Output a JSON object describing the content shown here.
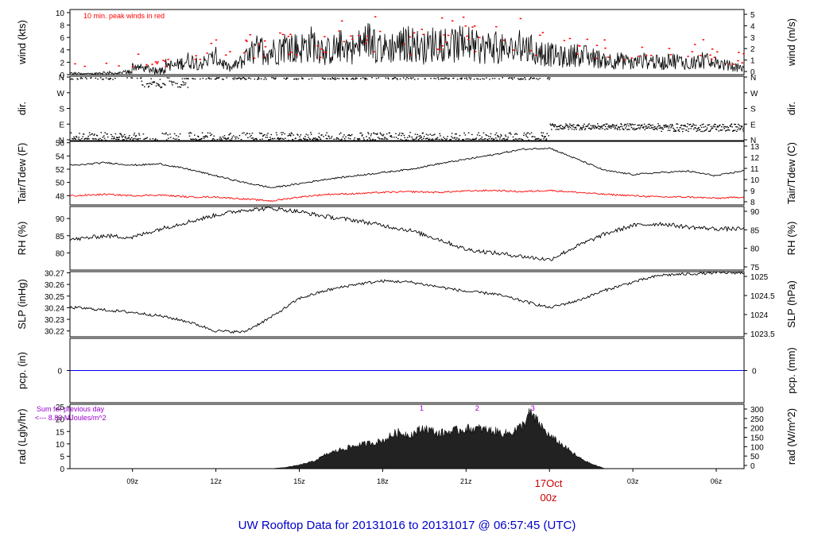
{
  "title": "UW Rooftop Data for 20131016  to  20131017 @ 06:57:45  (UTC)",
  "colors": {
    "axis": "#000000",
    "peak": "#ff0000",
    "precip": "#0000ff",
    "title": "#0000cc",
    "radiation_note": "#9900cc",
    "date_label": "#cc0000"
  },
  "time_axis": {
    "ticks": [
      "09z",
      "12z",
      "15z",
      "18z",
      "21z",
      "00z",
      "03z",
      "06z"
    ],
    "date_label": "17Oct",
    "date_sub": "00z"
  },
  "chart_data": [
    {
      "type": "line",
      "id": "wind",
      "ylabel": "wind (kts)",
      "ylabel_right": "wind (m/s)",
      "ylim": [
        0,
        10.5
      ],
      "yticks": [
        0,
        2,
        4,
        6,
        8,
        10
      ],
      "yticks_right": [
        "0",
        "1",
        "2",
        "3",
        "4",
        "5"
      ],
      "annotation": "10 min. peak winds in red",
      "series": [
        {
          "x_hours": [
            7.0,
            7.5,
            8.0,
            8.5,
            9.0,
            9.5,
            10.0,
            10.5,
            11.0,
            11.5,
            12.0,
            12.5,
            13.0,
            13.5,
            14.0,
            14.5,
            15.0,
            15.5,
            16.0,
            16.5,
            17.0,
            17.5,
            18.0,
            18.5,
            19.0,
            19.5,
            20.0,
            20.5,
            21.0,
            21.5,
            22.0,
            22.5,
            23.0,
            23.5,
            24.0,
            24.5,
            25.0,
            25.5,
            26.0,
            26.5,
            27.0,
            27.5,
            28.0,
            28.5,
            29.0,
            29.5,
            30.0,
            30.5,
            31.0
          ],
          "values": [
            0.5,
            0.3,
            0.8,
            0.5,
            1.5,
            1.0,
            2.0,
            1.5,
            2.5,
            2.0,
            3.0,
            1.0,
            2.5,
            4.5,
            4.0,
            5.0,
            4.5,
            5.5,
            4.0,
            5.0,
            4.5,
            6.0,
            4.5,
            5.0,
            5.5,
            4.5,
            6.0,
            5.0,
            5.5,
            4.5,
            5.0,
            4.0,
            5.0,
            4.0,
            3.5,
            3.0,
            3.5,
            3.0,
            2.5,
            2.5,
            2.0,
            2.5,
            2.0,
            2.5,
            2.0,
            2.5,
            2.0,
            1.5,
            1.0
          ]
        }
      ]
    },
    {
      "type": "scatter",
      "id": "direction",
      "ylabel": "dir.",
      "ylabel_right": "dir.",
      "yticks": [
        "N",
        "E",
        "S",
        "W",
        "N"
      ],
      "note": "wind direction, N at bottom and top"
    },
    {
      "type": "line",
      "id": "temperature",
      "ylabel": "Tair/Tdew (F)",
      "ylabel_right": "Tair/Tdew (C)",
      "ylim": [
        46.6,
        56.2
      ],
      "yticks": [
        48,
        50,
        52,
        54,
        56
      ],
      "yticks_right": [
        "8",
        "9",
        "10",
        "11",
        "12",
        "13"
      ],
      "series": [
        {
          "name": "Tair",
          "x_hours": [
            7,
            8,
            9,
            10,
            11,
            12,
            13,
            14,
            15,
            16,
            17,
            18,
            19,
            20,
            21,
            22,
            23,
            24,
            25,
            26,
            27,
            28,
            29,
            30,
            31
          ],
          "values": [
            52.6,
            53.0,
            52.6,
            52.8,
            52.0,
            51.0,
            50.0,
            49.2,
            49.8,
            50.5,
            51.0,
            51.5,
            52.0,
            52.8,
            53.5,
            54.2,
            55.0,
            55.2,
            53.5,
            51.8,
            51.2,
            51.5,
            51.7,
            51.0,
            51.8
          ]
        },
        {
          "name": "Tdew",
          "x_hours": [
            7,
            8,
            9,
            10,
            11,
            12,
            13,
            14,
            15,
            16,
            17,
            18,
            19,
            20,
            21,
            22,
            23,
            24,
            25,
            26,
            27,
            28,
            29,
            30,
            31
          ],
          "values": [
            48.0,
            48.2,
            48.0,
            48.1,
            47.8,
            47.8,
            47.5,
            47.2,
            47.8,
            48.2,
            48.3,
            48.5,
            48.6,
            48.5,
            48.7,
            48.8,
            48.6,
            48.8,
            48.5,
            48.2,
            48.0,
            47.8,
            47.8,
            47.6,
            47.8
          ]
        }
      ]
    },
    {
      "type": "line",
      "id": "humidity",
      "ylabel": "RH (%)",
      "ylabel_right": "RH (%)",
      "ylim": [
        75,
        93.5
      ],
      "yticks": [
        80,
        85,
        90
      ],
      "yticks_right": [
        "75",
        "80",
        "85",
        "90"
      ],
      "series": [
        {
          "x_hours": [
            7,
            8,
            9,
            10,
            11,
            12,
            13,
            14,
            15,
            16,
            17,
            18,
            19,
            20,
            21,
            22,
            23,
            24,
            25,
            26,
            27,
            28,
            29,
            30,
            31
          ],
          "values": [
            84.0,
            85.0,
            84.5,
            87.0,
            89.0,
            91.0,
            92.5,
            93.0,
            92.0,
            90.5,
            89.5,
            88.0,
            86.5,
            84.0,
            81.0,
            80.0,
            79.0,
            78.0,
            82.0,
            85.5,
            88.0,
            88.5,
            87.5,
            87.0,
            87.0
          ]
        }
      ]
    },
    {
      "type": "line",
      "id": "pressure",
      "ylabel": "SLP (inHg)",
      "ylabel_right": "SLP (hPa)",
      "ylim": [
        30.215,
        30.271
      ],
      "yticks": [
        "30.22",
        "30.23",
        "30.24",
        "30.25",
        "30.26",
        "30.27"
      ],
      "yticks_right": [
        "1023.5",
        "1024",
        "1024.5",
        "1025"
      ],
      "series": [
        {
          "x_hours": [
            7,
            8,
            9,
            10,
            11,
            12,
            13,
            14,
            15,
            16,
            17,
            18,
            19,
            20,
            21,
            22,
            23,
            24,
            25,
            26,
            27,
            28,
            29,
            30,
            31
          ],
          "values": [
            30.24,
            30.238,
            30.236,
            30.233,
            30.228,
            30.22,
            30.219,
            30.232,
            30.248,
            30.255,
            30.26,
            30.263,
            30.262,
            30.258,
            30.254,
            30.252,
            30.246,
            30.24,
            30.246,
            30.255,
            30.262,
            30.268,
            30.269,
            30.27,
            30.27
          ]
        }
      ]
    },
    {
      "type": "line",
      "id": "precipitation",
      "ylabel": "pcp. (in)",
      "ylabel_right": "pcp. (mm)",
      "yticks": [
        "0"
      ],
      "yticks_right": [
        "0"
      ],
      "series": [
        {
          "x_hours": [
            7,
            31
          ],
          "values": [
            0,
            0
          ]
        }
      ]
    },
    {
      "type": "area",
      "id": "radiation",
      "ylabel": "rad (Lgly/hr)",
      "ylabel_right": "rad (W/m^2)",
      "ylim": [
        0,
        26
      ],
      "yticks": [
        0,
        5,
        10,
        15,
        20,
        25
      ],
      "yticks_right": [
        "0",
        "50",
        "100",
        "150",
        "200",
        "250",
        "300"
      ],
      "annotation_line1": "Sum for previous day",
      "annotation_line2": "<--- 8.83 MJoules/m^2",
      "hour_marks": [
        "1",
        "2",
        "3"
      ],
      "series": [
        {
          "x_hours": [
            14.0,
            14.5,
            15.0,
            15.5,
            16.0,
            16.5,
            17.0,
            17.5,
            18.0,
            18.5,
            19.0,
            19.5,
            20.0,
            20.5,
            21.0,
            21.5,
            22.0,
            22.5,
            23.0,
            23.3,
            23.6,
            24.0,
            24.5,
            25.0,
            25.5,
            26.0
          ],
          "values": [
            0.0,
            0.5,
            1.5,
            3.0,
            6.0,
            8.0,
            9.5,
            10.5,
            11.5,
            15.0,
            14.0,
            17.0,
            14.5,
            15.5,
            16.5,
            16.5,
            15.5,
            14.5,
            17.5,
            23.0,
            19.0,
            13.5,
            9.5,
            5.0,
            2.0,
            0.0
          ]
        }
      ]
    }
  ]
}
